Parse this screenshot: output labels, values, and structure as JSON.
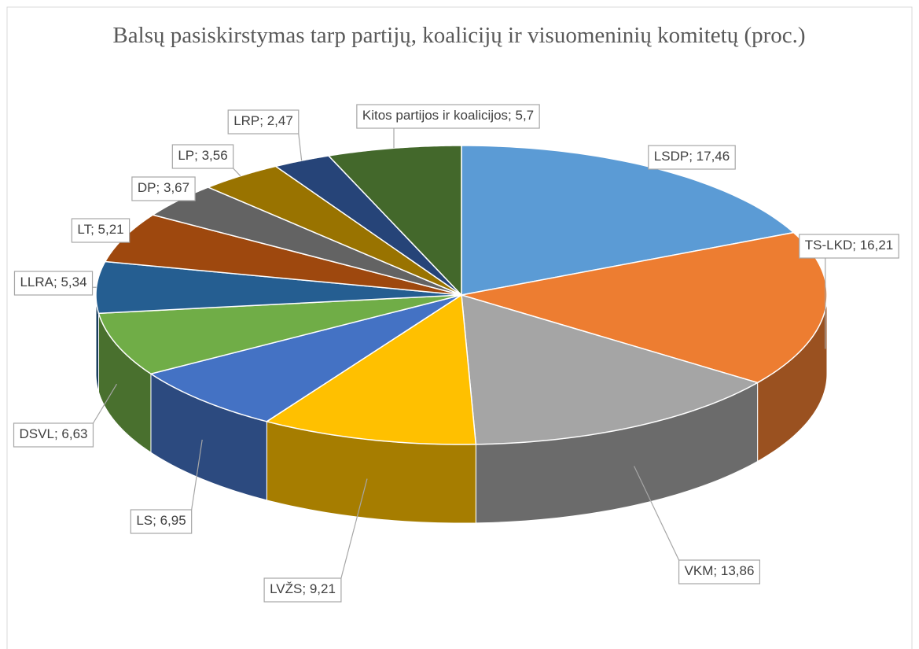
{
  "chart_data": {
    "type": "pie3d",
    "title": "Balsų pasiskirstymas tarp partijų, koalicijų ir visuomeninių komitetų (proc.)",
    "categories": [
      "LSDP",
      "TS-LKD",
      "VKM",
      "LVŽS",
      "LS",
      "DSVL",
      "LLRA",
      "LT",
      "DP",
      "LP",
      "LRP",
      "Kitos partijos ir koalicijos"
    ],
    "values": [
      17.46,
      16.21,
      13.86,
      9.21,
      6.95,
      6.63,
      5.34,
      5.21,
      3.67,
      3.56,
      2.47,
      5.7
    ],
    "value_labels": [
      "17,46",
      "16,21",
      "13,86",
      "9,21",
      "6,95",
      "6,63",
      "5,34",
      "5,21",
      "3,67",
      "3,56",
      "2,47",
      "5,7"
    ],
    "label_separator": "; ",
    "colors": [
      "#5b9bd5",
      "#ed7d31",
      "#a5a5a5",
      "#ffc000",
      "#4472c4",
      "#70ad47",
      "#255e91",
      "#9e480e",
      "#636363",
      "#997300",
      "#264478",
      "#43682b"
    ]
  }
}
